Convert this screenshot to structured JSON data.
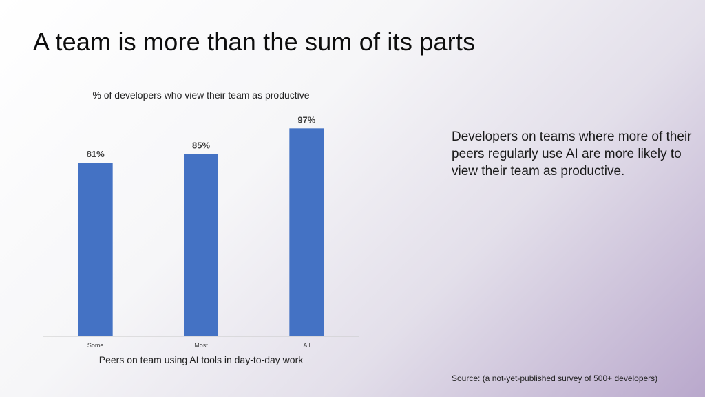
{
  "slide": {
    "title": "A team is more than the sum of its parts",
    "caption": "Developers on teams where more of their peers regularly use AI are more likely to view their team as productive.",
    "source": "Source: (a not-yet-published survey of 500+ developers)"
  },
  "chart_data": {
    "type": "bar",
    "title": "% of developers who view their team as productive",
    "xlabel": "Peers on team using AI tools in day-to-day work",
    "ylabel": "",
    "categories": [
      "Some",
      "Most",
      "All"
    ],
    "values": [
      81,
      85,
      97
    ],
    "data_labels": [
      "81%",
      "85%",
      "97%"
    ],
    "ylim": [
      0,
      100
    ],
    "grid": false,
    "bar_color": "#4472C4"
  }
}
